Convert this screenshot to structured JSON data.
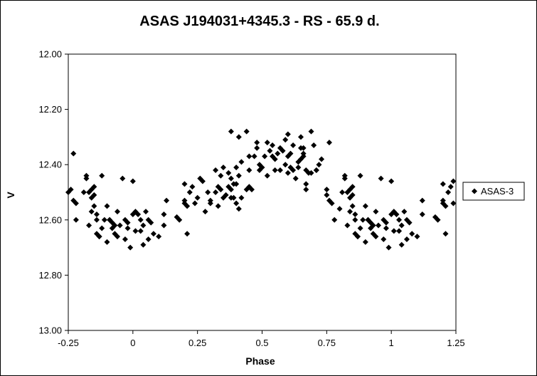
{
  "chart_data": {
    "type": "scatter",
    "title": "ASAS J194031+4345.3  - RS - 65.9 d.",
    "xlabel": "Phase",
    "ylabel": "V",
    "xlim": [
      -0.25,
      1.25
    ],
    "ylim": [
      13.0,
      12.0
    ],
    "y_inverted": true,
    "grid": false,
    "legend_position": "right",
    "xticks": [
      "-0.25",
      "0",
      "0.25",
      "0.5",
      "0.75",
      "1",
      "1.25"
    ],
    "yticks": [
      "12.00",
      "12.20",
      "12.40",
      "12.60",
      "12.80",
      "13.00"
    ],
    "marker_color": "#000000",
    "marker": "diamond",
    "series": [
      {
        "name": "ASAS-3",
        "points": [
          [
            -0.25,
            12.5
          ],
          [
            -0.24,
            12.49
          ],
          [
            -0.23,
            12.53
          ],
          [
            -0.23,
            12.36
          ],
          [
            -0.22,
            12.54
          ],
          [
            -0.22,
            12.6
          ],
          [
            -0.19,
            12.5
          ],
          [
            -0.18,
            12.44
          ],
          [
            -0.18,
            12.45
          ],
          [
            -0.17,
            12.5
          ],
          [
            -0.17,
            12.62
          ],
          [
            -0.16,
            12.49
          ],
          [
            -0.16,
            12.52
          ],
          [
            -0.16,
            12.57
          ],
          [
            -0.15,
            12.55
          ],
          [
            -0.15,
            12.51
          ],
          [
            -0.15,
            12.48
          ],
          [
            -0.14,
            12.6
          ],
          [
            -0.14,
            12.58
          ],
          [
            -0.14,
            12.65
          ],
          [
            -0.13,
            12.66
          ],
          [
            -0.13,
            12.66
          ],
          [
            -0.12,
            12.44
          ],
          [
            -0.12,
            12.63
          ],
          [
            -0.11,
            12.6
          ],
          [
            -0.1,
            12.55
          ],
          [
            -0.1,
            12.68
          ],
          [
            -0.09,
            12.6
          ],
          [
            -0.09,
            12.6
          ],
          [
            -0.08,
            12.61
          ],
          [
            -0.08,
            12.63
          ],
          [
            -0.07,
            12.62
          ],
          [
            -0.07,
            12.65
          ],
          [
            -0.06,
            12.66
          ],
          [
            -0.06,
            12.57
          ],
          [
            -0.05,
            12.62
          ],
          [
            -0.04,
            12.45
          ],
          [
            -0.03,
            12.6
          ],
          [
            -0.03,
            12.67
          ],
          [
            -0.02,
            12.63
          ],
          [
            -0.02,
            12.61
          ],
          [
            -0.01,
            12.7
          ],
          [
            0.0,
            12.46
          ],
          [
            0.0,
            12.58
          ],
          [
            0.01,
            12.64
          ],
          [
            0.01,
            12.57
          ],
          [
            0.02,
            12.58
          ],
          [
            0.03,
            12.64
          ],
          [
            0.03,
            12.6
          ],
          [
            0.04,
            12.69
          ],
          [
            0.04,
            12.62
          ],
          [
            0.05,
            12.57
          ],
          [
            0.06,
            12.6
          ],
          [
            0.06,
            12.67
          ],
          [
            0.07,
            12.61
          ],
          [
            0.08,
            12.65
          ],
          [
            0.1,
            12.66
          ],
          [
            0.12,
            12.58
          ],
          [
            0.12,
            12.62
          ],
          [
            0.13,
            12.53
          ],
          [
            0.17,
            12.59
          ],
          [
            0.18,
            12.6
          ],
          [
            0.2,
            12.53
          ],
          [
            0.2,
            12.54
          ],
          [
            0.2,
            12.47
          ],
          [
            0.21,
            12.65
          ],
          [
            0.21,
            12.55
          ],
          [
            0.22,
            12.5
          ],
          [
            0.23,
            12.48
          ],
          [
            0.24,
            12.54
          ],
          [
            0.25,
            12.52
          ],
          [
            0.26,
            12.45
          ],
          [
            0.27,
            12.46
          ],
          [
            0.28,
            12.57
          ],
          [
            0.29,
            12.5
          ],
          [
            0.3,
            12.53
          ],
          [
            0.3,
            12.54
          ],
          [
            0.32,
            12.5
          ],
          [
            0.32,
            12.42
          ],
          [
            0.33,
            12.48
          ],
          [
            0.33,
            12.55
          ],
          [
            0.34,
            12.49
          ],
          [
            0.34,
            12.44
          ],
          [
            0.35,
            12.52
          ],
          [
            0.35,
            12.41
          ],
          [
            0.36,
            12.51
          ],
          [
            0.37,
            12.43
          ],
          [
            0.37,
            12.48
          ],
          [
            0.38,
            12.28
          ],
          [
            0.38,
            12.49
          ],
          [
            0.38,
            12.52
          ],
          [
            0.38,
            12.45
          ],
          [
            0.39,
            12.47
          ],
          [
            0.39,
            12.52
          ],
          [
            0.4,
            12.47
          ],
          [
            0.4,
            12.41
          ],
          [
            0.4,
            12.54
          ],
          [
            0.41,
            12.56
          ],
          [
            0.41,
            12.44
          ],
          [
            0.41,
            12.3
          ],
          [
            0.42,
            12.52
          ],
          [
            0.42,
            12.39
          ],
          [
            0.44,
            12.28
          ],
          [
            0.44,
            12.49
          ],
          [
            0.45,
            12.48
          ],
          [
            0.45,
            12.42
          ],
          [
            0.45,
            12.37
          ],
          [
            0.46,
            12.49
          ],
          [
            0.47,
            12.37
          ],
          [
            0.48,
            12.32
          ],
          [
            0.48,
            12.34
          ],
          [
            0.49,
            12.42
          ],
          [
            0.49,
            12.4
          ],
          [
            0.5,
            12.41
          ],
          [
            0.51,
            12.37
          ],
          [
            0.52,
            12.32
          ],
          [
            0.52,
            12.44
          ],
          [
            0.53,
            12.35
          ],
          [
            0.54,
            12.33
          ],
          [
            0.54,
            12.37
          ],
          [
            0.55,
            12.38
          ],
          [
            0.55,
            12.42
          ],
          [
            0.56,
            12.36
          ],
          [
            0.57,
            12.34
          ],
          [
            0.57,
            12.42
          ],
          [
            0.58,
            12.35
          ],
          [
            0.59,
            12.4
          ],
          [
            0.59,
            12.31
          ],
          [
            0.6,
            12.29
          ],
          [
            0.6,
            12.43
          ],
          [
            0.6,
            12.37
          ],
          [
            0.61,
            12.36
          ],
          [
            0.61,
            12.41
          ],
          [
            0.62,
            12.33
          ],
          [
            0.62,
            12.42
          ],
          [
            0.63,
            12.45
          ],
          [
            0.64,
            12.39
          ],
          [
            0.64,
            12.41
          ],
          [
            0.65,
            12.34
          ],
          [
            0.65,
            12.38
          ],
          [
            0.65,
            12.3
          ],
          [
            0.66,
            12.36
          ],
          [
            0.66,
            12.37
          ],
          [
            0.66,
            12.34
          ],
          [
            0.67,
            12.42
          ],
          [
            0.67,
            12.47
          ],
          [
            0.67,
            12.49
          ],
          [
            0.68,
            12.43
          ],
          [
            0.69,
            12.43
          ],
          [
            0.69,
            12.28
          ],
          [
            0.7,
            12.33
          ],
          [
            0.71,
            12.42
          ],
          [
            0.71,
            12.42
          ],
          [
            0.72,
            12.4
          ],
          [
            0.73,
            12.38
          ],
          [
            0.75,
            12.51
          ],
          [
            0.75,
            12.49
          ],
          [
            0.76,
            12.32
          ],
          [
            0.76,
            12.53
          ],
          [
            0.77,
            12.54
          ],
          [
            0.78,
            12.6
          ],
          [
            0.8,
            12.56
          ],
          [
            0.81,
            12.5
          ],
          [
            0.82,
            12.45
          ],
          [
            0.82,
            12.44
          ],
          [
            0.83,
            12.5
          ],
          [
            0.83,
            12.62
          ],
          [
            0.84,
            12.49
          ],
          [
            0.84,
            12.52
          ],
          [
            0.84,
            12.57
          ],
          [
            0.85,
            12.55
          ],
          [
            0.85,
            12.51
          ],
          [
            0.85,
            12.48
          ],
          [
            0.86,
            12.6
          ],
          [
            0.86,
            12.58
          ],
          [
            0.86,
            12.65
          ],
          [
            0.87,
            12.66
          ],
          [
            0.87,
            12.66
          ],
          [
            0.88,
            12.44
          ],
          [
            0.88,
            12.63
          ],
          [
            0.89,
            12.6
          ],
          [
            0.9,
            12.55
          ],
          [
            0.9,
            12.68
          ],
          [
            0.91,
            12.6
          ],
          [
            0.91,
            12.6
          ],
          [
            0.92,
            12.61
          ],
          [
            0.92,
            12.63
          ],
          [
            0.93,
            12.62
          ],
          [
            0.93,
            12.65
          ],
          [
            0.94,
            12.66
          ],
          [
            0.94,
            12.57
          ],
          [
            0.95,
            12.62
          ],
          [
            0.96,
            12.45
          ],
          [
            0.97,
            12.6
          ],
          [
            0.97,
            12.67
          ],
          [
            0.98,
            12.63
          ],
          [
            0.98,
            12.61
          ],
          [
            0.99,
            12.7
          ],
          [
            1.0,
            12.46
          ],
          [
            1.0,
            12.58
          ],
          [
            1.01,
            12.64
          ],
          [
            1.01,
            12.57
          ],
          [
            1.02,
            12.58
          ],
          [
            1.03,
            12.64
          ],
          [
            1.03,
            12.6
          ],
          [
            1.04,
            12.69
          ],
          [
            1.04,
            12.62
          ],
          [
            1.05,
            12.57
          ],
          [
            1.06,
            12.6
          ],
          [
            1.06,
            12.67
          ],
          [
            1.07,
            12.61
          ],
          [
            1.08,
            12.65
          ],
          [
            1.1,
            12.66
          ],
          [
            1.12,
            12.58
          ],
          [
            1.12,
            12.53
          ],
          [
            1.17,
            12.59
          ],
          [
            1.18,
            12.6
          ],
          [
            1.2,
            12.53
          ],
          [
            1.2,
            12.54
          ],
          [
            1.2,
            12.47
          ],
          [
            1.21,
            12.65
          ],
          [
            1.21,
            12.55
          ],
          [
            1.22,
            12.5
          ],
          [
            1.23,
            12.48
          ],
          [
            1.24,
            12.54
          ],
          [
            1.24,
            12.46
          ]
        ]
      }
    ]
  }
}
